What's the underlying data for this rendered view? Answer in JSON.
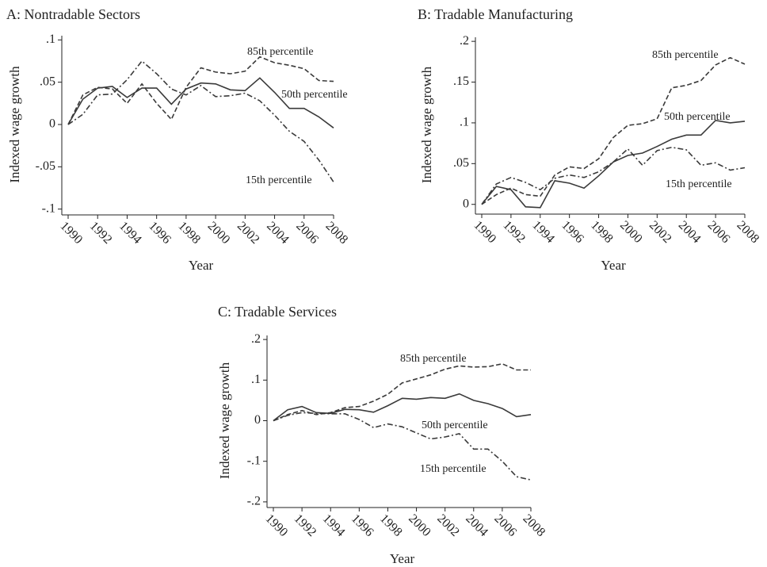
{
  "chart_data": [
    {
      "type": "line",
      "title": "A: Nontradable Sectors",
      "x_label": "Year",
      "y_label": "Indexed wage growth",
      "x": [
        1990,
        1991,
        1992,
        1993,
        1994,
        1995,
        1996,
        1997,
        1998,
        1999,
        2000,
        2001,
        2002,
        2003,
        2004,
        2005,
        2006,
        2007,
        2008
      ],
      "xlim": [
        1990,
        2008
      ],
      "xticks": [
        1990,
        1992,
        1994,
        1996,
        1998,
        2000,
        2002,
        2004,
        2006,
        2008
      ],
      "ylim": [
        -0.105,
        0.105
      ],
      "yticks": [
        {
          "value": -0.1,
          "label": "-.1"
        },
        {
          "value": -0.05,
          "label": "-.05"
        },
        0,
        {
          "value": 0.05,
          "label": ".05"
        },
        {
          "value": 0.1,
          "label": ".1"
        }
      ],
      "series": [
        {
          "name": "85th percentile",
          "color": "#3a3a3a",
          "dash": "dashed",
          "values": [
            0,
            0.035,
            0.044,
            0.042,
            0.025,
            0.048,
            0.025,
            0.006,
            0.044,
            0.067,
            0.062,
            0.06,
            0.063,
            0.08,
            0.073,
            0.07,
            0.066,
            0.052,
            0.051
          ]
        },
        {
          "name": "50th percentile",
          "color": "#3a3a3a",
          "dash": "solid",
          "values": [
            0,
            0.03,
            0.043,
            0.045,
            0.032,
            0.043,
            0.043,
            0.024,
            0.042,
            0.049,
            0.048,
            0.041,
            0.04,
            0.055,
            0.038,
            0.019,
            0.019,
            0.009,
            -0.004
          ]
        },
        {
          "name": "15th percentile",
          "color": "#3a3a3a",
          "dash": "dashdot",
          "values": [
            0,
            0.012,
            0.035,
            0.036,
            0.053,
            0.075,
            0.06,
            0.042,
            0.035,
            0.046,
            0.033,
            0.034,
            0.037,
            0.028,
            0.011,
            -0.008,
            -0.02,
            -0.042,
            -0.068
          ]
        }
      ]
    },
    {
      "type": "line",
      "title": "B: Tradable Manufacturing",
      "x_label": "Year",
      "y_label": "Indexed wage growth",
      "x": [
        1990,
        1991,
        1992,
        1993,
        1994,
        1995,
        1996,
        1997,
        1998,
        1999,
        2000,
        2001,
        2002,
        2003,
        2004,
        2005,
        2006,
        2007,
        2008
      ],
      "xlim": [
        1990,
        2008
      ],
      "xticks": [
        1990,
        1992,
        1994,
        1996,
        1998,
        2000,
        2002,
        2004,
        2006,
        2008
      ],
      "ylim": [
        -0.01,
        0.205
      ],
      "yticks": [
        0,
        {
          "value": 0.05,
          "label": ".05"
        },
        {
          "value": 0.1,
          "label": ".1"
        },
        {
          "value": 0.15,
          "label": ".15"
        },
        {
          "value": 0.2,
          "label": ".2"
        }
      ],
      "series": [
        {
          "name": "85th percentile",
          "color": "#3a3a3a",
          "dash": "dashed",
          "values": [
            0,
            0.012,
            0.02,
            0.012,
            0.01,
            0.036,
            0.046,
            0.044,
            0.056,
            0.082,
            0.097,
            0.099,
            0.105,
            0.143,
            0.146,
            0.152,
            0.171,
            0.18,
            0.172
          ]
        },
        {
          "name": "50th percentile",
          "color": "#3a3a3a",
          "dash": "solid",
          "values": [
            0,
            0.022,
            0.018,
            -0.003,
            -0.004,
            0.029,
            0.026,
            0.02,
            0.035,
            0.052,
            0.06,
            0.063,
            0.071,
            0.08,
            0.085,
            0.085,
            0.103,
            0.1,
            0.102
          ]
        },
        {
          "name": "15th percentile",
          "color": "#3a3a3a",
          "dash": "dashdot",
          "values": [
            0,
            0.025,
            0.033,
            0.027,
            0.018,
            0.032,
            0.036,
            0.033,
            0.04,
            0.052,
            0.068,
            0.048,
            0.066,
            0.07,
            0.067,
            0.048,
            0.051,
            0.042,
            0.045
          ]
        }
      ]
    },
    {
      "type": "line",
      "title": "C: Tradable Services",
      "x_label": "Year",
      "y_label": "Indexed wage growth",
      "x": [
        1990,
        1991,
        1992,
        1993,
        1994,
        1995,
        1996,
        1997,
        1998,
        1999,
        2000,
        2001,
        2002,
        2003,
        2004,
        2005,
        2006,
        2007,
        2008
      ],
      "xlim": [
        1990,
        2008
      ],
      "xticks": [
        1990,
        1992,
        1994,
        1996,
        1998,
        2000,
        2002,
        2004,
        2006,
        2008
      ],
      "ylim": [
        -0.21,
        0.21
      ],
      "yticks": [
        {
          "value": -0.2,
          "label": "-.2"
        },
        {
          "value": -0.1,
          "label": "-.1"
        },
        0,
        {
          "value": 0.1,
          "label": ".1"
        },
        {
          "value": 0.2,
          "label": ".2"
        }
      ],
      "series": [
        {
          "name": "85th percentile",
          "color": "#3a3a3a",
          "dash": "dashed",
          "values": [
            0,
            0.015,
            0.025,
            0.015,
            0.02,
            0.032,
            0.035,
            0.048,
            0.065,
            0.093,
            0.103,
            0.113,
            0.127,
            0.135,
            0.132,
            0.133,
            0.14,
            0.125,
            0.125
          ]
        },
        {
          "name": "50th percentile",
          "color": "#3a3a3a",
          "dash": "solid",
          "values": [
            0,
            0.027,
            0.035,
            0.02,
            0.018,
            0.028,
            0.027,
            0.021,
            0.037,
            0.055,
            0.053,
            0.057,
            0.055,
            0.066,
            0.05,
            0.042,
            0.03,
            0.01,
            0.015
          ]
        },
        {
          "name": "15th percentile",
          "color": "#3a3a3a",
          "dash": "dashdot",
          "values": [
            0,
            0.013,
            0.02,
            0.018,
            0.017,
            0.017,
            0.003,
            -0.017,
            -0.008,
            -0.015,
            -0.03,
            -0.045,
            -0.04,
            -0.032,
            -0.07,
            -0.07,
            -0.1,
            -0.138,
            -0.146
          ]
        }
      ]
    }
  ]
}
